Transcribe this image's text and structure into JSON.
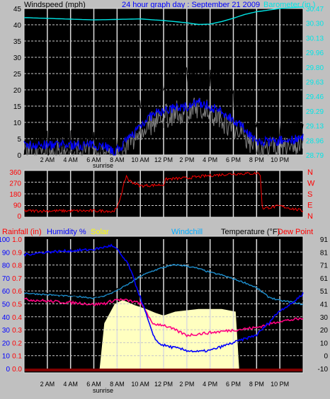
{
  "chart_data": [
    {
      "type": "line",
      "title": "24 hour graph day : September 21 2009",
      "left_axis_label": "Windspeed (mph)",
      "right_axis_label": "Barometer (in.)",
      "ylim": [
        0,
        45
      ],
      "y_ticks": [
        0,
        5,
        10,
        15,
        20,
        25,
        30,
        35,
        40,
        45
      ],
      "y2_ticks": [
        "28.79",
        "28.96",
        "29.13",
        "29.29",
        "29.46",
        "29.63",
        "29.80",
        "29.96",
        "30.13",
        "30.30",
        "30.47"
      ],
      "x_ticks": [
        "2 AM",
        "4 AM",
        "6 AM",
        "8 AM",
        "10 AM",
        "12 PM",
        "2 PM",
        "4 PM",
        "6 PM",
        "8 PM",
        "10 PM"
      ],
      "x_annotation": "sunrise",
      "colors": {
        "gust": "#000000",
        "avg": "#0000ff",
        "wind": "#808080",
        "barometer": "#00e5e5"
      },
      "barometer_wind_scale": [
        [
          0,
          42.2
        ],
        [
          6,
          41.5
        ],
        [
          10,
          41.8
        ],
        [
          12,
          41.3
        ],
        [
          14,
          40.6
        ],
        [
          15,
          40.1
        ],
        [
          16,
          40.2
        ],
        [
          17,
          41.0
        ],
        [
          18,
          42.0
        ],
        [
          19,
          43.2
        ],
        [
          20,
          44.0
        ],
        [
          22,
          45.0
        ],
        [
          24,
          45.5
        ]
      ],
      "gust_profile": [
        [
          0,
          4
        ],
        [
          7,
          4
        ],
        [
          7.7,
          1
        ],
        [
          8.5,
          5
        ],
        [
          9.5,
          11
        ],
        [
          10.5,
          16
        ],
        [
          11.5,
          20
        ],
        [
          12.5,
          23
        ],
        [
          14,
          24
        ],
        [
          15,
          25
        ],
        [
          16,
          25
        ],
        [
          17,
          22
        ],
        [
          18,
          18
        ],
        [
          19,
          13
        ],
        [
          20,
          7
        ],
        [
          21,
          7
        ],
        [
          24,
          7
        ]
      ],
      "avg_profile": [
        [
          0,
          3
        ],
        [
          7,
          3
        ],
        [
          7.7,
          0.5
        ],
        [
          8.5,
          3
        ],
        [
          9.5,
          7
        ],
        [
          10.5,
          11
        ],
        [
          11.5,
          13
        ],
        [
          12.5,
          14
        ],
        [
          14,
          15
        ],
        [
          15,
          16
        ],
        [
          16,
          15
        ],
        [
          17,
          13
        ],
        [
          18,
          11
        ],
        [
          19,
          8
        ],
        [
          20,
          4
        ],
        [
          21,
          4
        ],
        [
          24,
          5
        ]
      ]
    },
    {
      "type": "line",
      "y_ticks": [
        "0",
        "90",
        "180",
        "270",
        "360"
      ],
      "compass_labels": [
        "N",
        "W",
        "S",
        "E",
        "N"
      ],
      "x_ticks": [
        "",
        "",
        "",
        "",
        "",
        "",
        "",
        "",
        "",
        "",
        ""
      ],
      "colors": {
        "direction": "#ff0000"
      },
      "direction_profile": [
        [
          0,
          40
        ],
        [
          7.3,
          40
        ],
        [
          7.5,
          30
        ],
        [
          8,
          60
        ],
        [
          8.4,
          190
        ],
        [
          8.8,
          330
        ],
        [
          9,
          290
        ],
        [
          10,
          245
        ],
        [
          12,
          255
        ],
        [
          12.2,
          300
        ],
        [
          14,
          310
        ],
        [
          16,
          330
        ],
        [
          18,
          345
        ],
        [
          20,
          348
        ],
        [
          20.3,
          350
        ],
        [
          20.5,
          60
        ],
        [
          22,
          80
        ],
        [
          23,
          60
        ],
        [
          24,
          40
        ]
      ]
    },
    {
      "type": "line",
      "labels": [
        "Rainfall (in)",
        "Humidity %",
        "Solar",
        "Windchill",
        "Temperature (°F)",
        "Dew Point"
      ],
      "colors": {
        "rainfall": "#ff0000",
        "humidity": "#0000ff",
        "solar": "#ffff00",
        "windchill": "#00aaff",
        "temperature": "#000000",
        "dewpoint": "#ff0000",
        "humidity_line": "#0000ff",
        "dewpoint_line": "#ff0080",
        "solar_fill": "#ffffc0"
      },
      "ylim_temperature": [
        -10,
        91
      ],
      "y_left_humidity": [
        "0",
        "10",
        "20",
        "30",
        "40",
        "50",
        "60",
        "70",
        "80",
        "90",
        "100"
      ],
      "y_left_rain": [
        "0.0",
        "0.1",
        "0.2",
        "0.3",
        "0.4",
        "0.5",
        "0.6",
        "0.7",
        "0.8",
        "0.9",
        "1.0"
      ],
      "y_right_temp": [
        "-10",
        "0",
        "10",
        "20",
        "30",
        "41",
        "51",
        "61",
        "71",
        "81",
        "91"
      ],
      "x_ticks": [
        "2 AM",
        "4 AM",
        "6 AM",
        "8 AM",
        "10 AM",
        "12 PM",
        "2 PM",
        "4 PM",
        "6 PM",
        "8 PM",
        "10 PM"
      ],
      "x_annotation": "sunrise",
      "temperature_profile": [
        [
          0,
          50
        ],
        [
          3,
          48
        ],
        [
          5,
          47
        ],
        [
          6,
          46
        ],
        [
          7,
          48
        ],
        [
          8,
          52
        ],
        [
          9,
          58
        ],
        [
          10,
          64
        ],
        [
          11,
          68
        ],
        [
          12,
          71
        ],
        [
          13,
          73
        ],
        [
          14,
          72
        ],
        [
          15,
          70
        ],
        [
          16,
          68
        ],
        [
          17,
          65
        ],
        [
          18,
          62
        ],
        [
          19,
          59
        ],
        [
          20,
          55
        ],
        [
          21,
          50
        ],
        [
          22,
          47
        ],
        [
          23,
          45
        ],
        [
          24,
          43
        ]
      ],
      "windchill_profile": [
        [
          0,
          49
        ],
        [
          3,
          47
        ],
        [
          5,
          46
        ],
        [
          6,
          45
        ],
        [
          7,
          47
        ],
        [
          8,
          51
        ],
        [
          9,
          56
        ],
        [
          10,
          62
        ],
        [
          11,
          66
        ],
        [
          12,
          69
        ],
        [
          13,
          71
        ],
        [
          14,
          70
        ],
        [
          15,
          68
        ],
        [
          16,
          65
        ],
        [
          17,
          63
        ],
        [
          18,
          60
        ],
        [
          19,
          57
        ],
        [
          20,
          53
        ],
        [
          21,
          46
        ],
        [
          22,
          43
        ],
        [
          23,
          42
        ],
        [
          24,
          40
        ]
      ],
      "dewpoint_profile": [
        [
          0,
          44
        ],
        [
          3,
          42
        ],
        [
          5,
          41
        ],
        [
          6,
          40
        ],
        [
          7,
          41
        ],
        [
          8,
          44
        ],
        [
          9,
          43
        ],
        [
          10,
          41
        ],
        [
          10.5,
          35
        ],
        [
          11,
          25
        ],
        [
          12,
          24
        ],
        [
          13,
          20
        ],
        [
          14,
          16
        ],
        [
          15,
          17
        ],
        [
          16,
          18
        ],
        [
          17,
          19
        ],
        [
          18,
          20
        ],
        [
          19,
          21
        ],
        [
          20,
          22
        ],
        [
          22,
          27
        ],
        [
          24,
          29
        ]
      ],
      "humidity_profile": [
        [
          0,
          88
        ],
        [
          2,
          90
        ],
        [
          4,
          91
        ],
        [
          6,
          92
        ],
        [
          7,
          94
        ],
        [
          7.5,
          95
        ],
        [
          8,
          92
        ],
        [
          9,
          80
        ],
        [
          10,
          55
        ],
        [
          10.5,
          42
        ],
        [
          11,
          28
        ],
        [
          11.5,
          20
        ],
        [
          12,
          18
        ],
        [
          14,
          14
        ],
        [
          15,
          13
        ],
        [
          16,
          14
        ],
        [
          17,
          17
        ],
        [
          18,
          20
        ],
        [
          19,
          23
        ],
        [
          20,
          26
        ],
        [
          21,
          35
        ],
        [
          22,
          45
        ],
        [
          23,
          50
        ],
        [
          24,
          58
        ]
      ],
      "solar_profile": [
        [
          6.5,
          0
        ],
        [
          6.9,
          35
        ],
        [
          7.8,
          50
        ],
        [
          8.5,
          53
        ],
        [
          9.5,
          49
        ],
        [
          10.5,
          46
        ],
        [
          11.3,
          43
        ],
        [
          12,
          41
        ],
        [
          13,
          44
        ],
        [
          15,
          46
        ],
        [
          17,
          46
        ],
        [
          18.2,
          44
        ],
        [
          18.5,
          0
        ]
      ]
    }
  ]
}
